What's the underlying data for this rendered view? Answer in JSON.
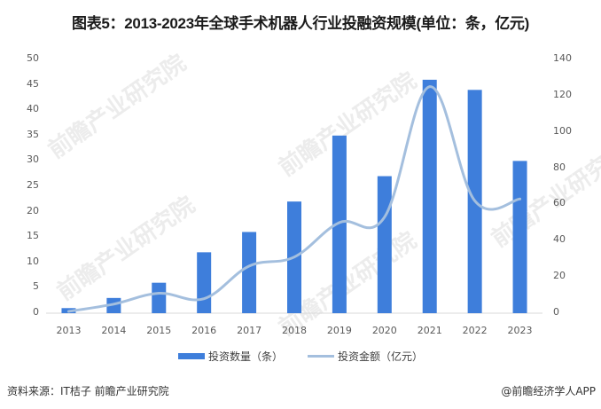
{
  "title": "图表5：2013-2023年全球手术机器人行业投融资规模(单位：条，亿元)",
  "chart_data": {
    "type": "bar+line",
    "title": "图表5：2013-2023年全球手术机器人行业投融资规模(单位：条，亿元)",
    "categories": [
      "2013",
      "2014",
      "2015",
      "2016",
      "2017",
      "2018",
      "2019",
      "2020",
      "2021",
      "2022",
      "2023"
    ],
    "series": [
      {
        "name": "投资数量（条）",
        "type": "bar",
        "axis": "left",
        "color": "#3e7edb",
        "values": [
          1,
          3,
          6,
          12,
          16,
          22,
          35,
          27,
          46,
          44,
          30
        ]
      },
      {
        "name": "投资金额（亿元）",
        "type": "line",
        "axis": "right",
        "color": "#a4bfde",
        "values": [
          1,
          5,
          11,
          8,
          26,
          31,
          50,
          53,
          125,
          62,
          63
        ]
      }
    ],
    "left_axis": {
      "ticks": [
        "0",
        "5",
        "10",
        "15",
        "20",
        "25",
        "30",
        "35",
        "40",
        "45",
        "50"
      ],
      "ylim": [
        0,
        50
      ]
    },
    "right_axis": {
      "ticks": [
        "0",
        "20",
        "40",
        "60",
        "80",
        "100",
        "120",
        "140"
      ],
      "ylim": [
        0,
        140
      ]
    },
    "grid": false,
    "legend_position": "bottom"
  },
  "legend": {
    "bar_label": "投资数量（条）",
    "line_label": "投资金额（亿元）"
  },
  "footer": {
    "source": "资料来源：IT桔子 前瞻产业研究院",
    "credit": "@前瞻经济学人APP"
  },
  "watermark": "前瞻产业研究院"
}
